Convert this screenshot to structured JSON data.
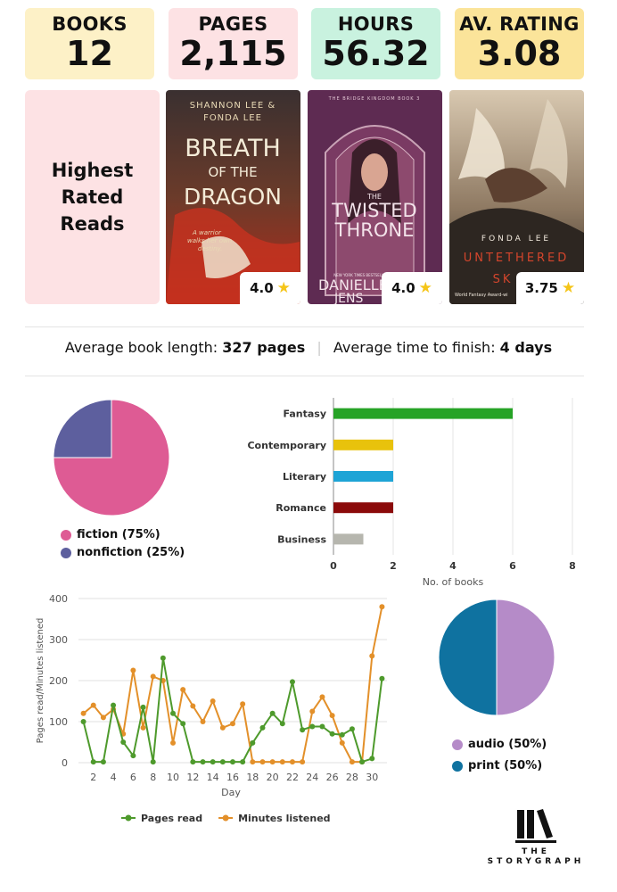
{
  "stats": [
    {
      "label": "BOOKS",
      "value": "12",
      "color": "#fdf1c7"
    },
    {
      "label": "PAGES",
      "value": "2,115",
      "color": "#fde2e4"
    },
    {
      "label": "HOURS",
      "value": "56.32",
      "color": "#c9f2df"
    },
    {
      "label": "AV. RATING",
      "value": "3.08",
      "color": "#fbe49a"
    }
  ],
  "highest_rated": {
    "title": "Highest Rated Reads",
    "books": [
      {
        "cover_text": [
          "SHANNON LEE &",
          "FONDA LEE",
          "BREATH",
          "OF THE",
          "DRAGON",
          "A warrior",
          "walks her own",
          "destiny."
        ],
        "rating": "4.0"
      },
      {
        "cover_text": [
          "THE BRIDGE KINGDOM BOOK 3",
          "THE",
          "TWISTED",
          "THRONE",
          "NEW YORK TIMES BESTSELLING AUTHOR",
          "DANIELLE L.",
          "JENS"
        ],
        "rating": "4.0"
      },
      {
        "cover_text": [
          "FONDA LEE",
          "UNTETHERED",
          "SK",
          "World Fantasy Award-wi"
        ],
        "rating": "3.75"
      }
    ]
  },
  "averages": {
    "length_label": "Average book length:",
    "length_value": "327 pages",
    "time_label": "Average time to finish:",
    "time_value": "4 days"
  },
  "chart_data": [
    {
      "type": "pie",
      "labels": [
        "fiction (75%)",
        "nonfiction (25%)"
      ],
      "values": [
        75,
        25
      ],
      "colors": [
        "#de5b94",
        "#5d5f9e"
      ]
    },
    {
      "type": "bar",
      "orientation": "horizontal",
      "categories": [
        "Fantasy",
        "Contemporary",
        "Literary",
        "Romance",
        "Business"
      ],
      "values": [
        6,
        2,
        2,
        2,
        1
      ],
      "colors": [
        "#26a326",
        "#e8c20c",
        "#1ea4d6",
        "#8b0a0a",
        "#b6b6ae"
      ],
      "xlabel": "No. of books",
      "xlim": [
        0,
        8
      ],
      "xticks": [
        0,
        2,
        4,
        6,
        8
      ],
      "grid": true
    },
    {
      "type": "line",
      "x": [
        1,
        2,
        3,
        4,
        5,
        6,
        7,
        8,
        9,
        10,
        11,
        12,
        13,
        14,
        15,
        16,
        17,
        18,
        19,
        20,
        21,
        22,
        23,
        24,
        25,
        26,
        27,
        28,
        29,
        30,
        31
      ],
      "xticks": [
        2,
        4,
        6,
        8,
        10,
        12,
        14,
        16,
        18,
        20,
        22,
        24,
        26,
        28,
        30
      ],
      "yticks": [
        0,
        100,
        200,
        300,
        400
      ],
      "ylim": [
        0,
        400
      ],
      "xlabel": "Day",
      "ylabel": "Pages read/Minutes listened",
      "legend_position": "bottom",
      "series": [
        {
          "name": "Pages read",
          "color": "#4e9a2c",
          "values": [
            100,
            2,
            2,
            140,
            50,
            17,
            135,
            2,
            255,
            120,
            95,
            2,
            2,
            2,
            2,
            2,
            2,
            48,
            85,
            120,
            95,
            197,
            80,
            88,
            88,
            70,
            68,
            82,
            2,
            10,
            205
          ]
        },
        {
          "name": "Minutes listened",
          "color": "#e3902a",
          "values": [
            120,
            140,
            110,
            130,
            70,
            225,
            85,
            210,
            200,
            48,
            178,
            138,
            100,
            150,
            85,
            95,
            143,
            2,
            2,
            2,
            2,
            2,
            2,
            125,
            160,
            115,
            48,
            2,
            2,
            260,
            380
          ]
        }
      ]
    },
    {
      "type": "pie",
      "labels": [
        "audio (50%)",
        "print (50%)"
      ],
      "values": [
        50,
        50
      ],
      "colors": [
        "#b58bc8",
        "#0f72a0"
      ]
    }
  ],
  "logo": {
    "line1": "THE",
    "line2": "STORYGRAPH"
  }
}
